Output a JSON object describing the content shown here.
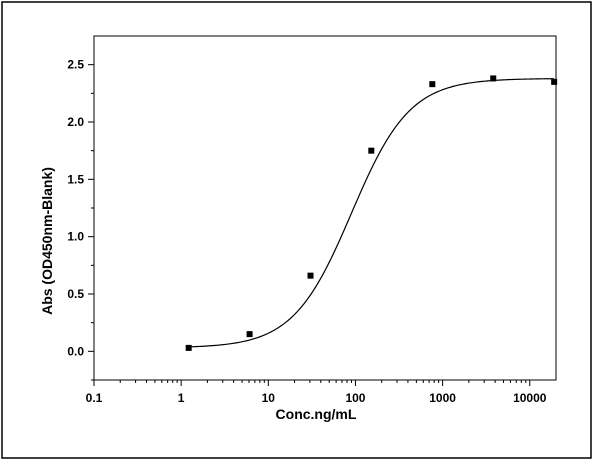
{
  "chart_data": {
    "type": "scatter",
    "title": "",
    "xlabel": "Conc.ng/mL",
    "ylabel": "Abs (OD450nm-Blank)",
    "x_scale": "log",
    "xlim": [
      0.1,
      20000
    ],
    "ylim": [
      -0.25,
      2.75
    ],
    "grid": false,
    "x_ticks": [
      {
        "value": 0.1,
        "label": "0.1"
      },
      {
        "value": 1,
        "label": "1"
      },
      {
        "value": 10,
        "label": "10"
      },
      {
        "value": 100,
        "label": "100"
      },
      {
        "value": 1000,
        "label": "1000"
      },
      {
        "value": 10000,
        "label": "10000"
      }
    ],
    "y_ticks": [
      {
        "value": 0.0,
        "label": "0.0"
      },
      {
        "value": 0.5,
        "label": "0.5"
      },
      {
        "value": 1.0,
        "label": "1.0"
      },
      {
        "value": 1.5,
        "label": "1.5"
      },
      {
        "value": 2.0,
        "label": "2.0"
      },
      {
        "value": 2.5,
        "label": "2.5"
      }
    ],
    "series": [
      {
        "marker": "square",
        "color": "#000000",
        "x": [
          1.22,
          6.1,
          30.5,
          152,
          762,
          3810,
          19050
        ],
        "y": [
          0.03,
          0.15,
          0.66,
          1.75,
          2.33,
          2.38,
          2.35
        ]
      }
    ],
    "fit_curve": {
      "model": "4PL",
      "bottom": 0.03,
      "top": 2.38,
      "ec50": 90,
      "hill": 1.3,
      "x_range": [
        1.22,
        19050
      ]
    }
  }
}
